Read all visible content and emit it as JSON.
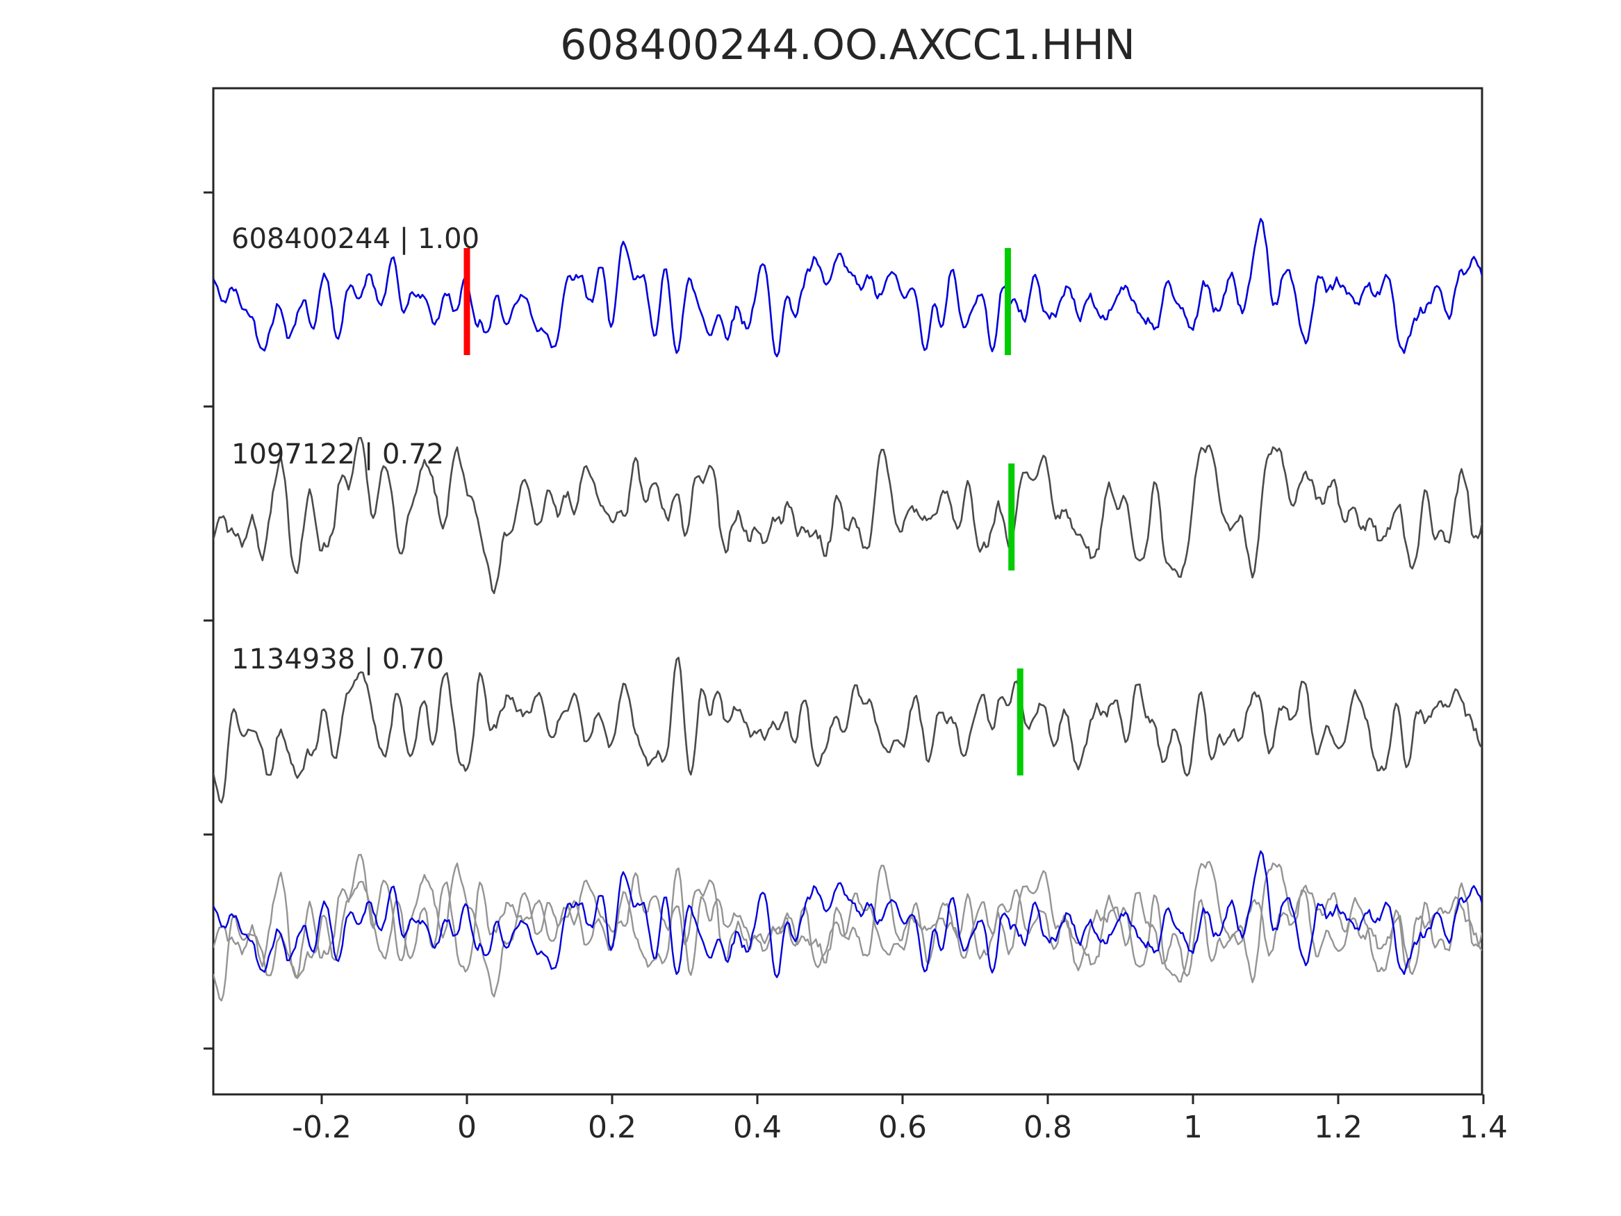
{
  "title": "608400244.OO.AXCC1.HHN",
  "chart_data": {
    "type": "line",
    "title": "608400244.OO.AXCC1.HHN",
    "xlabel": "",
    "ylabel": "",
    "xlim": [
      -0.35,
      1.4
    ],
    "grid": false,
    "legend": "none",
    "x_ticks": [
      -0.2,
      0,
      0.2,
      0.4,
      0.6,
      0.8,
      1,
      1.2,
      1.4
    ],
    "x_tick_labels": [
      "-0.2",
      "0",
      "0.2",
      "0.4",
      "0.6",
      "0.8",
      "1",
      "1.2",
      "1.4"
    ],
    "description": "Template waveform (blue) and two matched detection waveforms (gray) with pick markers; bottom row shows all three waveforms overlaid after alignment. Red marker = template origin pick at t=0; green markers = detection picks near t=0.75.",
    "traces": [
      {
        "label": "608400244 | 1.00",
        "event_id": "608400244",
        "correlation": 1.0,
        "color": "#0000dd",
        "row": 0,
        "seed": 42,
        "amplitude": 120,
        "markers": [
          {
            "x": 0.0,
            "color": "#ff0000",
            "name": "template-pick"
          },
          {
            "x": 0.745,
            "color": "#00cc00",
            "name": "detection-pick"
          }
        ]
      },
      {
        "label": "1097122 | 0.72",
        "event_id": "1097122",
        "correlation": 0.72,
        "color": "#4a4a4a",
        "row": 1,
        "seed": 7,
        "amplitude": 115,
        "markers": [
          {
            "x": 0.75,
            "color": "#00cc00",
            "name": "detection-pick"
          }
        ]
      },
      {
        "label": "1134938 | 0.70",
        "event_id": "1134938",
        "correlation": 0.7,
        "color": "#4a4a4a",
        "row": 2,
        "seed": 13,
        "amplitude": 115,
        "markers": [
          {
            "x": 0.762,
            "color": "#00cc00",
            "name": "detection-pick"
          }
        ]
      }
    ],
    "overlay_row": {
      "row": 3,
      "traces": [
        {
          "event_id": "1097122",
          "color": "#949494",
          "seed": 7,
          "amplitude": 105
        },
        {
          "event_id": "1134938",
          "color": "#949494",
          "seed": 13,
          "amplitude": 105
        },
        {
          "event_id": "608400244",
          "color": "#0000dd",
          "seed": 42,
          "amplitude": 110
        }
      ]
    },
    "marker_colors": {
      "template": "#ff0000",
      "detection": "#00cc00"
    },
    "frame_color": "#262626"
  }
}
